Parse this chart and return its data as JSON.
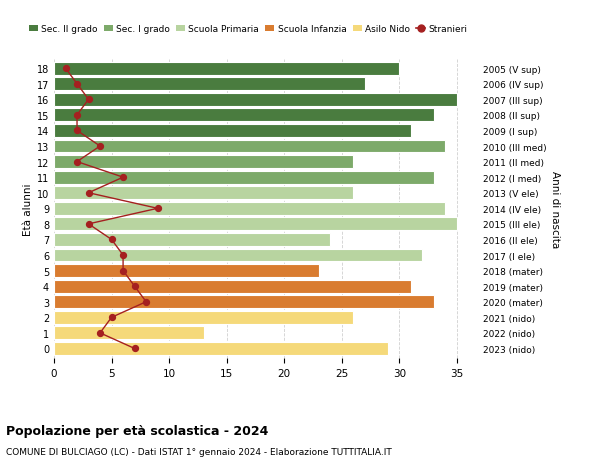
{
  "ages": [
    18,
    17,
    16,
    15,
    14,
    13,
    12,
    11,
    10,
    9,
    8,
    7,
    6,
    5,
    4,
    3,
    2,
    1,
    0
  ],
  "years": [
    "2005 (V sup)",
    "2006 (IV sup)",
    "2007 (III sup)",
    "2008 (II sup)",
    "2009 (I sup)",
    "2010 (III med)",
    "2011 (II med)",
    "2012 (I med)",
    "2013 (V ele)",
    "2014 (IV ele)",
    "2015 (III ele)",
    "2016 (II ele)",
    "2017 (I ele)",
    "2018 (mater)",
    "2019 (mater)",
    "2020 (mater)",
    "2021 (nido)",
    "2022 (nido)",
    "2023 (nido)"
  ],
  "bar_values": [
    30,
    27,
    35,
    33,
    31,
    34,
    26,
    33,
    26,
    34,
    35,
    24,
    32,
    23,
    31,
    33,
    26,
    13,
    29
  ],
  "bar_colors": [
    "#4a7c3f",
    "#4a7c3f",
    "#4a7c3f",
    "#4a7c3f",
    "#4a7c3f",
    "#7daa6a",
    "#7daa6a",
    "#7daa6a",
    "#b8d4a0",
    "#b8d4a0",
    "#b8d4a0",
    "#b8d4a0",
    "#b8d4a0",
    "#d97c30",
    "#d97c30",
    "#d97c30",
    "#f5d97a",
    "#f5d97a",
    "#f5d97a"
  ],
  "stranieri_values": [
    1,
    2,
    3,
    2,
    2,
    4,
    2,
    6,
    3,
    9,
    3,
    5,
    6,
    6,
    7,
    8,
    5,
    4,
    7
  ],
  "stranieri_color": "#a52020",
  "legend_labels": [
    "Sec. II grado",
    "Sec. I grado",
    "Scuola Primaria",
    "Scuola Infanzia",
    "Asilo Nido",
    "Stranieri"
  ],
  "legend_colors": [
    "#4a7c3f",
    "#7daa6a",
    "#b8d4a0",
    "#d97c30",
    "#f5d97a",
    "#a52020"
  ],
  "title": "Popolazione per età scolastica - 2024",
  "subtitle": "COMUNE DI BULCIAGO (LC) - Dati ISTAT 1° gennaio 2024 - Elaborazione TUTTITALIA.IT",
  "ylabel": "Età alunni",
  "ylabel_right": "Anni di nascita",
  "xlim": [
    0,
    37
  ],
  "background_color": "#ffffff",
  "grid_color": "#d0d0d0"
}
